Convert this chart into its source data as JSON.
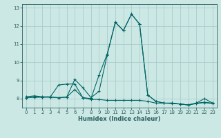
{
  "title": "",
  "xlabel": "Humidex (Indice chaleur)",
  "background_color": "#cce8e4",
  "grid_color": "#aacccc",
  "line_color": "#006666",
  "xlim": [
    -0.5,
    23.5
  ],
  "ylim": [
    7.5,
    13.2
  ],
  "xticks": [
    0,
    1,
    2,
    3,
    4,
    5,
    6,
    7,
    8,
    9,
    10,
    11,
    12,
    13,
    14,
    15,
    16,
    17,
    18,
    19,
    20,
    21,
    22,
    23
  ],
  "yticks": [
    8,
    9,
    10,
    11,
    12,
    13
  ],
  "series": [
    [
      8.1,
      8.15,
      8.1,
      8.1,
      8.75,
      8.8,
      8.8,
      8.05,
      8.0,
      9.3,
      10.45,
      12.2,
      11.75,
      12.65,
      12.1,
      8.2,
      7.85,
      7.75,
      7.75,
      7.7,
      7.65,
      7.75,
      7.8,
      7.75
    ],
    [
      8.05,
      8.08,
      8.08,
      8.08,
      8.05,
      8.08,
      8.5,
      8.05,
      7.95,
      7.95,
      7.9,
      7.9,
      7.9,
      7.9,
      7.9,
      7.85,
      7.75,
      7.75,
      7.72,
      7.7,
      7.65,
      7.72,
      7.78,
      7.72
    ],
    [
      8.05,
      8.08,
      8.08,
      8.08,
      8.05,
      8.08,
      9.05,
      8.6,
      8.05,
      8.4,
      10.4,
      12.2,
      11.75,
      12.65,
      12.1,
      8.2,
      7.85,
      7.75,
      7.75,
      7.7,
      7.65,
      7.75,
      8.0,
      7.75
    ]
  ],
  "marker": "+",
  "markersize": 3.5,
  "linewidth": 0.8,
  "font_color": "#2a6060",
  "font_size": 5,
  "xlabel_fontsize": 6
}
